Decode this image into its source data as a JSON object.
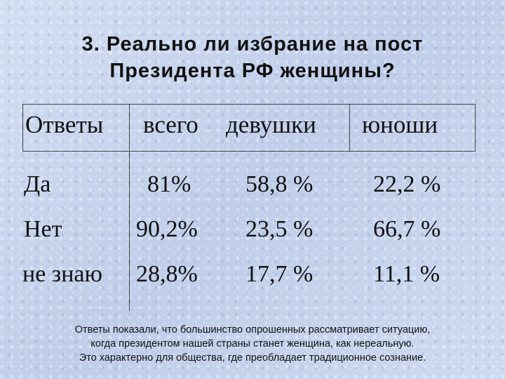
{
  "title": {
    "line1": "3. Реально ли избрание на пост",
    "line2": "Президента РФ женщины?"
  },
  "table": {
    "headers": [
      "Ответы",
      "всего",
      "девушки",
      "юноши"
    ],
    "rows": [
      {
        "label": "Да",
        "total": "81%",
        "girls": "58,8 %",
        "boys": "22,2 %"
      },
      {
        "label": "Нет",
        "total": "90,2%",
        "girls": "23,5 %",
        "boys": "66,7 %"
      },
      {
        "label": "не знаю",
        "total": "28,8%",
        "girls": "17,7 %",
        "boys": "11,1 %"
      }
    ]
  },
  "footer": {
    "line1": "Ответы показали, что большинство опрошенных рассматривает ситуацию,",
    "line2": "когда президентом нашей страны станет женщина, как нереальную.",
    "line3": "Это характерно для общества, где преобладает традиционное сознание."
  }
}
